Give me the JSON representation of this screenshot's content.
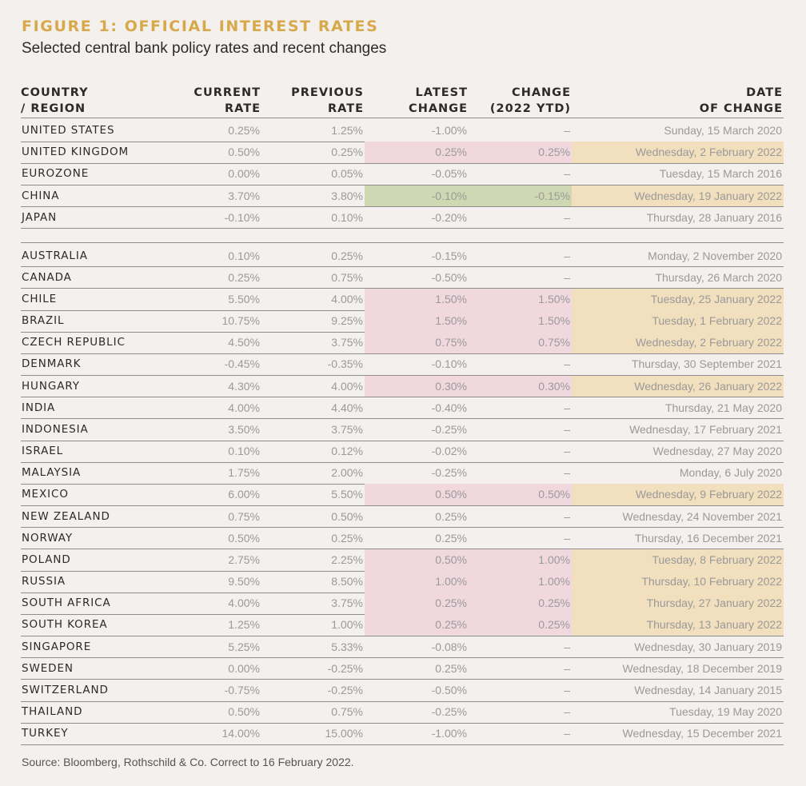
{
  "title": "FIGURE 1: OFFICIAL INTEREST RATES",
  "subtitle": "Selected central bank policy rates and recent changes",
  "source": "Source: Bloomberg, Rothschild & Co. Correct to 16 February 2022.",
  "colors": {
    "rise_highlight": "#f0d8de",
    "cut_highlight": "#cfd8b2",
    "date_highlight": "#f1dfbe",
    "title_color": "#d8a94b"
  },
  "chart_data": {
    "type": "table",
    "columns": [
      {
        "line1": "COUNTRY",
        "line2": "/ REGION"
      },
      {
        "line1": "CURRENT",
        "line2": "RATE"
      },
      {
        "line1": "PREVIOUS",
        "line2": "RATE"
      },
      {
        "line1": "LATEST",
        "line2": "CHANGE"
      },
      {
        "line1": "CHANGE",
        "line2": "(2022 YTD)"
      },
      {
        "line1": "DATE",
        "line2": "OF CHANGE"
      }
    ],
    "groups": [
      {
        "rows": [
          {
            "country": "UNITED STATES",
            "current": "0.25%",
            "previous": "1.25%",
            "latest": "-1.00%",
            "ytd": "–",
            "date": "Sunday, 15 March 2020",
            "highlight": "none"
          },
          {
            "country": "UNITED KINGDOM",
            "current": "0.50%",
            "previous": "0.25%",
            "latest": "0.25%",
            "ytd": "0.25%",
            "date": "Wednesday, 2 February 2022",
            "highlight": "rise"
          },
          {
            "country": "EUROZONE",
            "current": "0.00%",
            "previous": "0.05%",
            "latest": "-0.05%",
            "ytd": "–",
            "date": "Tuesday, 15 March 2016",
            "highlight": "none"
          },
          {
            "country": "CHINA",
            "current": "3.70%",
            "previous": "3.80%",
            "latest": "-0.10%",
            "ytd": "-0.15%",
            "date": "Wednesday, 19 January 2022",
            "highlight": "cut"
          },
          {
            "country": "JAPAN",
            "current": "-0.10%",
            "previous": "0.10%",
            "latest": "-0.20%",
            "ytd": "–",
            "date": "Thursday, 28 January 2016",
            "highlight": "none"
          }
        ]
      },
      {
        "rows": [
          {
            "country": "AUSTRALIA",
            "current": "0.10%",
            "previous": "0.25%",
            "latest": "-0.15%",
            "ytd": "–",
            "date": "Monday, 2 November 2020",
            "highlight": "none"
          },
          {
            "country": "CANADA",
            "current": "0.25%",
            "previous": "0.75%",
            "latest": "-0.50%",
            "ytd": "–",
            "date": "Thursday, 26 March 2020",
            "highlight": "none"
          },
          {
            "country": "CHILE",
            "current": "5.50%",
            "previous": "4.00%",
            "latest": "1.50%",
            "ytd": "1.50%",
            "date": "Tuesday, 25 January 2022",
            "highlight": "rise"
          },
          {
            "country": "BRAZIL",
            "current": "10.75%",
            "previous": "9.25%",
            "latest": "1.50%",
            "ytd": "1.50%",
            "date": "Tuesday, 1 February 2022",
            "highlight": "rise"
          },
          {
            "country": "CZECH REPUBLIC",
            "current": "4.50%",
            "previous": "3.75%",
            "latest": "0.75%",
            "ytd": "0.75%",
            "date": "Wednesday, 2 February 2022",
            "highlight": "rise"
          },
          {
            "country": "DENMARK",
            "current": "-0.45%",
            "previous": "-0.35%",
            "latest": "-0.10%",
            "ytd": "–",
            "date": "Thursday, 30 September 2021",
            "highlight": "none"
          },
          {
            "country": "HUNGARY",
            "current": "4.30%",
            "previous": "4.00%",
            "latest": "0.30%",
            "ytd": "0.30%",
            "date": "Wednesday, 26 January 2022",
            "highlight": "rise"
          },
          {
            "country": "INDIA",
            "current": "4.00%",
            "previous": "4.40%",
            "latest": "-0.40%",
            "ytd": "–",
            "date": "Thursday, 21 May 2020",
            "highlight": "none"
          },
          {
            "country": "INDONESIA",
            "current": "3.50%",
            "previous": "3.75%",
            "latest": "-0.25%",
            "ytd": "–",
            "date": "Wednesday, 17 February 2021",
            "highlight": "none"
          },
          {
            "country": "ISRAEL",
            "current": "0.10%",
            "previous": "0.12%",
            "latest": "-0.02%",
            "ytd": "–",
            "date": "Wednesday, 27 May 2020",
            "highlight": "none"
          },
          {
            "country": "MALAYSIA",
            "current": "1.75%",
            "previous": "2.00%",
            "latest": "-0.25%",
            "ytd": "–",
            "date": "Monday, 6 July 2020",
            "highlight": "none"
          },
          {
            "country": "MEXICO",
            "current": "6.00%",
            "previous": "5.50%",
            "latest": "0.50%",
            "ytd": "0.50%",
            "date": "Wednesday, 9 February 2022",
            "highlight": "rise"
          },
          {
            "country": "NEW ZEALAND",
            "current": "0.75%",
            "previous": "0.50%",
            "latest": "0.25%",
            "ytd": "–",
            "date": "Wednesday, 24 November 2021",
            "highlight": "none"
          },
          {
            "country": "NORWAY",
            "current": "0.50%",
            "previous": "0.25%",
            "latest": "0.25%",
            "ytd": "–",
            "date": "Thursday, 16 December 2021",
            "highlight": "none"
          },
          {
            "country": "POLAND",
            "current": "2.75%",
            "previous": "2.25%",
            "latest": "0.50%",
            "ytd": "1.00%",
            "date": "Tuesday, 8 February 2022",
            "highlight": "rise"
          },
          {
            "country": "RUSSIA",
            "current": "9.50%",
            "previous": "8.50%",
            "latest": "1.00%",
            "ytd": "1.00%",
            "date": "Thursday, 10 February 2022",
            "highlight": "rise"
          },
          {
            "country": "SOUTH AFRICA",
            "current": "4.00%",
            "previous": "3.75%",
            "latest": "0.25%",
            "ytd": "0.25%",
            "date": "Thursday, 27 January 2022",
            "highlight": "rise"
          },
          {
            "country": "SOUTH KOREA",
            "current": "1.25%",
            "previous": "1.00%",
            "latest": "0.25%",
            "ytd": "0.25%",
            "date": "Thursday, 13 January 2022",
            "highlight": "rise"
          },
          {
            "country": "SINGAPORE",
            "current": "5.25%",
            "previous": "5.33%",
            "latest": "-0.08%",
            "ytd": "–",
            "date": "Wednesday, 30 January 2019",
            "highlight": "none"
          },
          {
            "country": "SWEDEN",
            "current": "0.00%",
            "previous": "-0.25%",
            "latest": "0.25%",
            "ytd": "–",
            "date": "Wednesday, 18 December 2019",
            "highlight": "none"
          },
          {
            "country": "SWITZERLAND",
            "current": "-0.75%",
            "previous": "-0.25%",
            "latest": "-0.50%",
            "ytd": "–",
            "date": "Wednesday, 14 January 2015",
            "highlight": "none"
          },
          {
            "country": "THAILAND",
            "current": "0.50%",
            "previous": "0.75%",
            "latest": "-0.25%",
            "ytd": "–",
            "date": "Tuesday, 19 May 2020",
            "highlight": "none"
          },
          {
            "country": "TURKEY",
            "current": "14.00%",
            "previous": "15.00%",
            "latest": "-1.00%",
            "ytd": "–",
            "date": "Wednesday, 15 December 2021",
            "highlight": "none"
          }
        ]
      }
    ]
  }
}
